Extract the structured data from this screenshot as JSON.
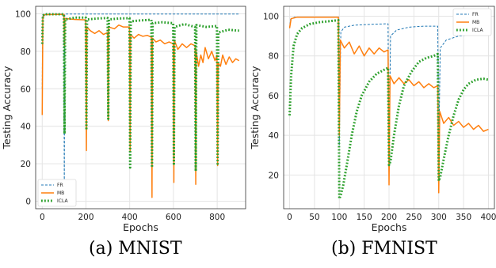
{
  "colors": {
    "FR": "#1f77b4",
    "MB": "#ff7f0e",
    "ICLA": "#2ca02c",
    "grid": "#e4e4e4",
    "axis": "#333333"
  },
  "captions": [
    {
      "text": "(a) MNIST"
    },
    {
      "text": "(b) FMNIST"
    }
  ],
  "chart_data": [
    {
      "type": "line",
      "xlabel": "Epochs",
      "ylabel": "Testing Accuracy",
      "xlim": [
        -30,
        930
      ],
      "ylim": [
        -4,
        104
      ],
      "xticks": [
        0,
        200,
        400,
        600,
        800
      ],
      "yticks": [
        0,
        20,
        40,
        60,
        80,
        100
      ],
      "grid": true,
      "legend_position": "lower-left",
      "legend": [
        "FR",
        "MB",
        "ICLA"
      ],
      "series": [
        {
          "name": "FR",
          "style": "dashed",
          "points": [
            [
              0,
              60
            ],
            [
              2,
              98
            ],
            [
              5,
              99.5
            ],
            [
              20,
              99.9
            ],
            [
              99,
              99.9
            ],
            [
              101,
              1
            ],
            [
              103,
              99.9
            ],
            [
              900,
              99.9
            ]
          ]
        },
        {
          "name": "MB",
          "style": "solid",
          "points": [
            [
              0,
              46
            ],
            [
              3,
              98
            ],
            [
              10,
              99.5
            ],
            [
              60,
              99.7
            ],
            [
              99,
              99.7
            ],
            [
              102,
              83
            ],
            [
              104,
              97.5
            ],
            [
              150,
              97
            ],
            [
              199,
              96.8
            ],
            [
              202,
              27
            ],
            [
              204,
              93
            ],
            [
              220,
              91
            ],
            [
              240,
              89.5
            ],
            [
              260,
              91
            ],
            [
              280,
              89
            ],
            [
              299,
              90
            ],
            [
              302,
              43
            ],
            [
              304,
              93
            ],
            [
              330,
              92
            ],
            [
              350,
              94
            ],
            [
              370,
              93
            ],
            [
              399,
              93
            ],
            [
              402,
              27
            ],
            [
              404,
              89
            ],
            [
              420,
              87
            ],
            [
              440,
              89
            ],
            [
              460,
              88
            ],
            [
              480,
              88.5
            ],
            [
              499,
              87.5
            ],
            [
              502,
              2
            ],
            [
              504,
              87
            ],
            [
              520,
              85
            ],
            [
              540,
              86
            ],
            [
              560,
              84
            ],
            [
              580,
              85
            ],
            [
              599,
              84
            ],
            [
              602,
              10
            ],
            [
              604,
              86
            ],
            [
              620,
              81
            ],
            [
              640,
              84
            ],
            [
              660,
              82
            ],
            [
              680,
              84
            ],
            [
              699,
              83
            ],
            [
              702,
              9
            ],
            [
              704,
              80
            ],
            [
              715,
              72
            ],
            [
              725,
              78
            ],
            [
              735,
              74
            ],
            [
              745,
              82
            ],
            [
              760,
              76
            ],
            [
              775,
              80
            ],
            [
              790,
              75
            ],
            [
              799,
              78
            ],
            [
              802,
              19
            ],
            [
              804,
              74
            ],
            [
              815,
              72
            ],
            [
              825,
              78
            ],
            [
              840,
              73
            ],
            [
              855,
              77
            ],
            [
              870,
              74
            ],
            [
              885,
              76
            ],
            [
              900,
              75
            ]
          ]
        },
        {
          "name": "ICLA",
          "style": "dotted",
          "points": [
            [
              0,
              84
            ],
            [
              3,
              99
            ],
            [
              10,
              99.8
            ],
            [
              99,
              99.8
            ],
            [
              102,
              36
            ],
            [
              105,
              97
            ],
            [
              150,
              98
            ],
            [
              199,
              98
            ],
            [
              202,
              38
            ],
            [
              205,
              97
            ],
            [
              250,
              97.5
            ],
            [
              299,
              97.8
            ],
            [
              302,
              44
            ],
            [
              305,
              97
            ],
            [
              350,
              97.5
            ],
            [
              399,
              97.7
            ],
            [
              402,
              18
            ],
            [
              405,
              96
            ],
            [
              450,
              96.5
            ],
            [
              499,
              96.8
            ],
            [
              502,
              18
            ],
            [
              505,
              95
            ],
            [
              550,
              95.5
            ],
            [
              599,
              95
            ],
            [
              602,
              20
            ],
            [
              605,
              93
            ],
            [
              650,
              94.5
            ],
            [
              699,
              93
            ],
            [
              702,
              16
            ],
            [
              705,
              94
            ],
            [
              750,
              93
            ],
            [
              799,
              93.5
            ],
            [
              802,
              20
            ],
            [
              805,
              90
            ],
            [
              850,
              91.5
            ],
            [
              900,
              91
            ]
          ]
        }
      ]
    },
    {
      "type": "line",
      "xlabel": "Epochs",
      "ylabel": "Testing Accuracy",
      "xlim": [
        -12,
        412
      ],
      "ylim": [
        3,
        105
      ],
      "xticks": [
        0,
        50,
        100,
        150,
        200,
        250,
        300,
        350,
        400
      ],
      "yticks": [
        20,
        40,
        60,
        80,
        100
      ],
      "grid": true,
      "legend_position": "top-right",
      "legend": [
        "FR",
        "MB",
        "ICLA"
      ],
      "series": [
        {
          "name": "FR",
          "style": "dashed",
          "points": [
            [
              0,
              94
            ],
            [
              2,
              98.5
            ],
            [
              10,
              99.5
            ],
            [
              98,
              99.5
            ],
            [
              99,
              99.5
            ],
            [
              100,
              35
            ],
            [
              103,
              92
            ],
            [
              110,
              94.5
            ],
            [
              130,
              95.5
            ],
            [
              170,
              96
            ],
            [
              198,
              96.2
            ],
            [
              200,
              21
            ],
            [
              203,
              90
            ],
            [
              215,
              93
            ],
            [
              240,
              94.5
            ],
            [
              270,
              95
            ],
            [
              298,
              95
            ],
            [
              300,
              30
            ],
            [
              303,
              84
            ],
            [
              315,
              88
            ],
            [
              340,
              90
            ],
            [
              370,
              91
            ],
            [
              400,
              91.5
            ]
          ]
        },
        {
          "name": "MB",
          "style": "solid",
          "points": [
            [
              0,
              94
            ],
            [
              3,
              98.8
            ],
            [
              15,
              99.5
            ],
            [
              98,
              99.5
            ],
            [
              100,
              40
            ],
            [
              102,
              88
            ],
            [
              110,
              84
            ],
            [
              120,
              87
            ],
            [
              130,
              81
            ],
            [
              140,
              85
            ],
            [
              150,
              80
            ],
            [
              160,
              84
            ],
            [
              170,
              81
            ],
            [
              180,
              84
            ],
            [
              190,
              82
            ],
            [
              198,
              83
            ],
            [
              200,
              15
            ],
            [
              202,
              70
            ],
            [
              210,
              66
            ],
            [
              220,
              69
            ],
            [
              230,
              66
            ],
            [
              240,
              68
            ],
            [
              250,
              65
            ],
            [
              260,
              67
            ],
            [
              270,
              64
            ],
            [
              280,
              66
            ],
            [
              290,
              64
            ],
            [
              298,
              65
            ],
            [
              300,
              11
            ],
            [
              302,
              52
            ],
            [
              310,
              46
            ],
            [
              320,
              49
            ],
            [
              330,
              45
            ],
            [
              340,
              47
            ],
            [
              350,
              44
            ],
            [
              360,
              46
            ],
            [
              370,
              43
            ],
            [
              380,
              45
            ],
            [
              390,
              42
            ],
            [
              400,
              43
            ]
          ]
        },
        {
          "name": "ICLA",
          "style": "dotted",
          "points": [
            [
              0,
              50
            ],
            [
              3,
              70
            ],
            [
              8,
              85
            ],
            [
              15,
              91
            ],
            [
              25,
              94
            ],
            [
              40,
              96
            ],
            [
              60,
              97
            ],
            [
              80,
              97.5
            ],
            [
              98,
              98
            ],
            [
              100,
              8
            ],
            [
              103,
              10
            ],
            [
              108,
              15
            ],
            [
              115,
              25
            ],
            [
              125,
              40
            ],
            [
              135,
              52
            ],
            [
              145,
              60
            ],
            [
              160,
              67
            ],
            [
              175,
              71
            ],
            [
              190,
              73
            ],
            [
              198,
              74
            ],
            [
              200,
              25
            ],
            [
              203,
              27
            ],
            [
              210,
              40
            ],
            [
              220,
              55
            ],
            [
              230,
              65
            ],
            [
              245,
              72
            ],
            [
              260,
              77
            ],
            [
              275,
              79
            ],
            [
              290,
              80
            ],
            [
              298,
              81
            ],
            [
              300,
              17
            ],
            [
              303,
              19
            ],
            [
              310,
              28
            ],
            [
              320,
              40
            ],
            [
              330,
              50
            ],
            [
              340,
              58
            ],
            [
              350,
              63
            ],
            [
              360,
              66
            ],
            [
              375,
              68
            ],
            [
              390,
              68.5
            ],
            [
              400,
              68
            ]
          ]
        }
      ]
    }
  ]
}
